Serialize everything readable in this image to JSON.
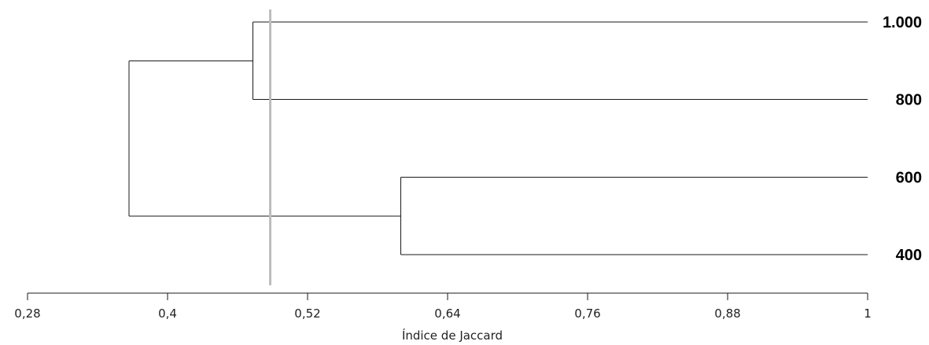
{
  "chart_data": {
    "type": "dendrogram",
    "xlabel": "Índice de Jaccard",
    "xlim": [
      0.28,
      1.0
    ],
    "ticks": [
      {
        "value": 0.28,
        "label": "0,28"
      },
      {
        "value": 0.4,
        "label": "0,4"
      },
      {
        "value": 0.52,
        "label": "0,52"
      },
      {
        "value": 0.64,
        "label": "0,64"
      },
      {
        "value": 0.76,
        "label": "0,76"
      },
      {
        "value": 0.88,
        "label": "0,88"
      },
      {
        "value": 1.0,
        "label": "1"
      }
    ],
    "leaves": [
      {
        "id": "l1000",
        "label": "1.000"
      },
      {
        "id": "l800",
        "label": "800"
      },
      {
        "id": "l600",
        "label": "600"
      },
      {
        "id": "l400",
        "label": "400"
      }
    ],
    "merges": [
      {
        "id": "a",
        "children": [
          "l1000",
          "l800"
        ],
        "similarity": 0.473
      },
      {
        "id": "b",
        "children": [
          "l600",
          "l400"
        ],
        "similarity": 0.6
      },
      {
        "id": "root",
        "children": [
          "a",
          "b"
        ],
        "similarity": 0.367
      }
    ],
    "cutoff": 0.488,
    "colors": {
      "branch": "#1a1a1a",
      "cutoff": "#bdbdbd"
    }
  }
}
